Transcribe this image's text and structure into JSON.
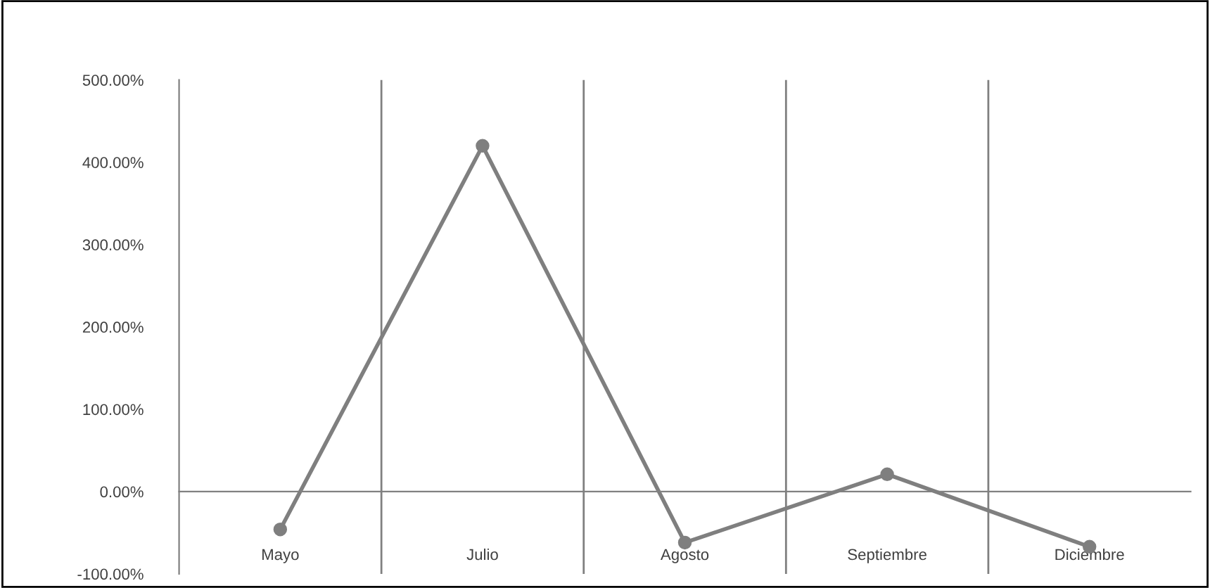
{
  "chart_data": {
    "type": "line",
    "categories": [
      "Mayo",
      "Julio",
      "Agosto",
      "Septiembre",
      "Diciembre"
    ],
    "series": [
      {
        "color": "#7f7f7f",
        "values": [
          -46,
          420,
          -62,
          21,
          -67
        ]
      }
    ],
    "ylim": [
      -100,
      500
    ],
    "yticks": [
      {
        "value": -100,
        "label": "-100.00%"
      },
      {
        "value": 0,
        "label": "0.00%"
      },
      {
        "value": 100,
        "label": "100.00%"
      },
      {
        "value": 200,
        "label": "200.00%"
      },
      {
        "value": 300,
        "label": "300.00%"
      },
      {
        "value": 400,
        "label": "400.00%"
      },
      {
        "value": 500,
        "label": "500.00%"
      }
    ],
    "grid": "x",
    "marker": "circle",
    "line_style": "solid",
    "legend": false
  }
}
